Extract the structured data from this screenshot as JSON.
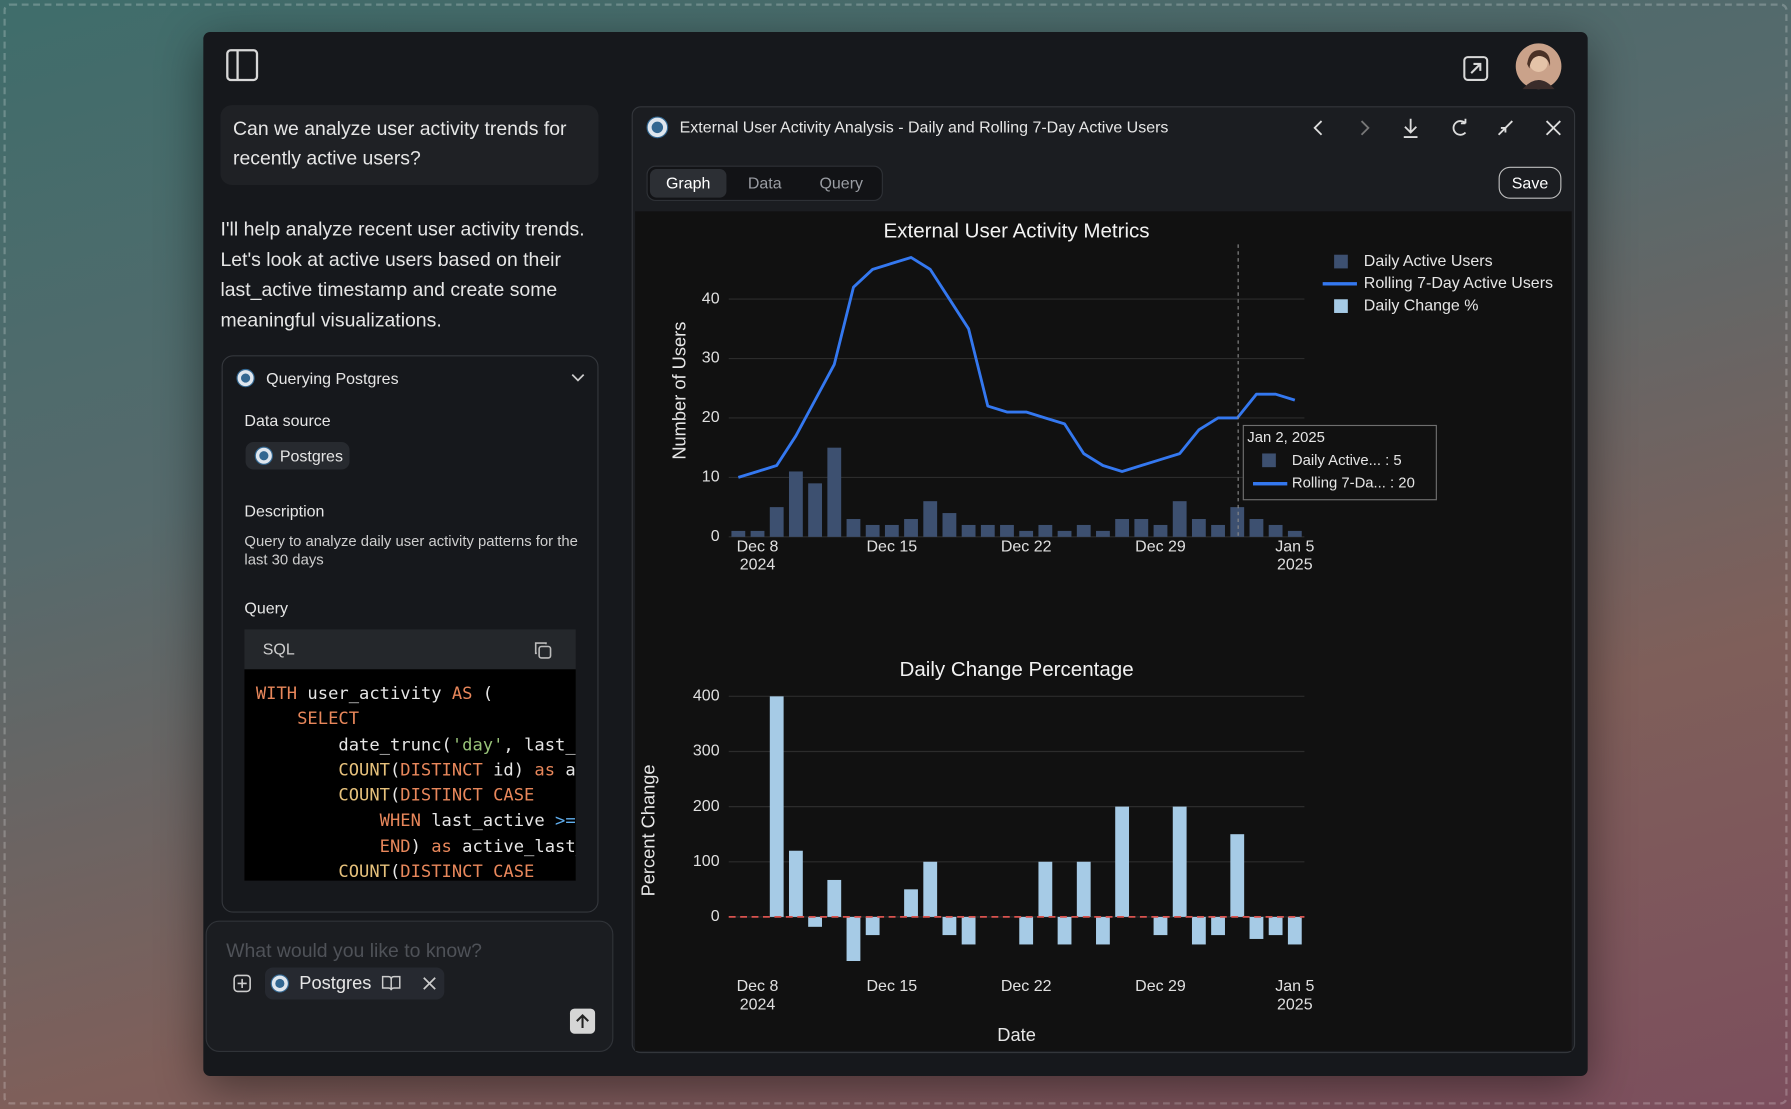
{
  "chat": {
    "user_message": "Can we analyze user activity trends for recently active users?",
    "assistant_message": "I'll help analyze recent user activity trends. Let's look at active users based on their last_active timestamp and create some meaningful visualizations."
  },
  "tool_card": {
    "title": "Querying Postgres",
    "data_source_label": "Data source",
    "data_source": "Postgres",
    "description_label": "Description",
    "description": "Query to analyze daily user activity patterns for the last 30 days",
    "query_label": "Query",
    "code": {
      "language": "SQL",
      "token_colors": {
        "kw": "#e8875b",
        "fn": "#e5c07b",
        "str": "#98c379",
        "op": "#61afef",
        "id": "#e6e6e6"
      },
      "lines": [
        [
          [
            "WITH",
            "kw"
          ],
          [
            " user_activity ",
            "id"
          ],
          [
            "AS",
            "kw"
          ],
          [
            " (",
            "id"
          ]
        ],
        [
          [
            "    ",
            "id"
          ],
          [
            "SELECT",
            "kw"
          ]
        ],
        [
          [
            "        date_trunc(",
            "id"
          ],
          [
            "'day'",
            "str"
          ],
          [
            ", last_a",
            "id"
          ]
        ],
        [
          [
            "        ",
            "id"
          ],
          [
            "COUNT",
            "fn"
          ],
          [
            "(",
            "id"
          ],
          [
            "DISTINCT",
            "kw"
          ],
          [
            " id) ",
            "id"
          ],
          [
            "as",
            "kw"
          ],
          [
            " a",
            "id"
          ]
        ],
        [
          [
            "        ",
            "id"
          ],
          [
            "COUNT",
            "fn"
          ],
          [
            "(",
            "id"
          ],
          [
            "DISTINCT CASE",
            "kw"
          ]
        ],
        [
          [
            "            ",
            "id"
          ],
          [
            "WHEN",
            "kw"
          ],
          [
            " last_active ",
            "id"
          ],
          [
            ">=",
            "op"
          ]
        ],
        [
          [
            "            ",
            "id"
          ],
          [
            "END",
            "kw"
          ],
          [
            ") ",
            "id"
          ],
          [
            "as",
            "kw"
          ],
          [
            " active_last_",
            "id"
          ]
        ],
        [
          [
            "        ",
            "id"
          ],
          [
            "COUNT",
            "fn"
          ],
          [
            "(",
            "id"
          ],
          [
            "DISTINCT CASE",
            "kw"
          ]
        ]
      ]
    }
  },
  "input": {
    "placeholder": "What would you like to know?",
    "source_chip": "Postgres"
  },
  "panel": {
    "title": "External User Activity Analysis - Daily and Rolling 7-Day Active Users",
    "tabs": [
      "Graph",
      "Data",
      "Query"
    ],
    "save": "Save"
  },
  "tooltip": {
    "title": "Jan 2, 2025",
    "items": [
      "Daily Active... : 5",
      "Rolling 7-Da... : 20"
    ]
  },
  "chart_data": [
    {
      "type": "combo",
      "title": "External User Activity Metrics",
      "ylabel": "Number of Users",
      "x": [
        "2024-12-07",
        "2024-12-08",
        "2024-12-09",
        "2024-12-10",
        "2024-12-11",
        "2024-12-12",
        "2024-12-13",
        "2024-12-14",
        "2024-12-15",
        "2024-12-16",
        "2024-12-17",
        "2024-12-18",
        "2024-12-19",
        "2024-12-20",
        "2024-12-21",
        "2024-12-22",
        "2024-12-23",
        "2024-12-24",
        "2024-12-25",
        "2024-12-26",
        "2024-12-27",
        "2024-12-28",
        "2024-12-29",
        "2024-12-30",
        "2024-12-31",
        "2025-01-01",
        "2025-01-02",
        "2025-01-03",
        "2025-01-04",
        "2025-01-05"
      ],
      "series": [
        {
          "name": "Daily Active Users",
          "type": "bar",
          "color": "#3d5070",
          "values": [
            1,
            1,
            5,
            11,
            9,
            15,
            3,
            2,
            2,
            3,
            6,
            4,
            2,
            2,
            2,
            1,
            2,
            1,
            2,
            1,
            3,
            3,
            2,
            6,
            3,
            2,
            5,
            3,
            2,
            1
          ]
        },
        {
          "name": "Rolling 7-Day Active Users",
          "type": "line",
          "color": "#3478f0",
          "values": [
            10,
            11,
            12,
            17,
            23,
            29,
            42,
            45,
            46,
            47,
            45,
            40,
            35,
            22,
            21,
            21,
            20,
            19,
            14,
            12,
            11,
            12,
            13,
            14,
            18,
            20,
            20,
            24,
            24,
            23
          ]
        }
      ],
      "xlim": [
        "2024-12-06T12:00Z",
        "2025-01-05T12:00Z"
      ],
      "xticks": [
        {
          "value": "2024-12-08",
          "label": [
            "Dec 8",
            "2024"
          ]
        },
        {
          "value": "2024-12-15",
          "label": [
            "Dec 15"
          ]
        },
        {
          "value": "2024-12-22",
          "label": [
            "Dec 22"
          ]
        },
        {
          "value": "2024-12-29",
          "label": [
            "Dec 29"
          ]
        },
        {
          "value": "2025-01-05",
          "label": [
            "Jan 5",
            "2025"
          ]
        }
      ],
      "ylim": [
        0,
        49
      ],
      "yticks": [
        0,
        10,
        20,
        30,
        40
      ],
      "grid": true,
      "legend": "top-right"
    },
    {
      "type": "bar",
      "title": "Daily Change Percentage",
      "ylabel": "Percent Change",
      "xlabel": "Date",
      "x": [
        "2024-12-07",
        "2024-12-08",
        "2024-12-09",
        "2024-12-10",
        "2024-12-11",
        "2024-12-12",
        "2024-12-13",
        "2024-12-14",
        "2024-12-15",
        "2024-12-16",
        "2024-12-17",
        "2024-12-18",
        "2024-12-19",
        "2024-12-20",
        "2024-12-21",
        "2024-12-22",
        "2024-12-23",
        "2024-12-24",
        "2024-12-25",
        "2024-12-26",
        "2024-12-27",
        "2024-12-28",
        "2024-12-29",
        "2024-12-30",
        "2024-12-31",
        "2025-01-01",
        "2025-01-02",
        "2025-01-03",
        "2025-01-04",
        "2025-01-05"
      ],
      "series": [
        {
          "name": "Daily Change %",
          "type": "bar",
          "color": "#a6cbe6",
          "values": [
            null,
            0,
            400,
            120,
            -18,
            67,
            -80,
            -33,
            0,
            50,
            100,
            -33,
            -50,
            0,
            0,
            -50,
            100,
            -50,
            100,
            -50,
            200,
            0,
            -33,
            200,
            -50,
            -33,
            150,
            -40,
            -33,
            -50
          ]
        }
      ],
      "xlim": [
        "2024-12-06T12:00Z",
        "2025-01-05T12:00Z"
      ],
      "xticks": [
        {
          "value": "2024-12-08",
          "label": [
            "Dec 8",
            "2024"
          ]
        },
        {
          "value": "2024-12-15",
          "label": [
            "Dec 15"
          ]
        },
        {
          "value": "2024-12-22",
          "label": [
            "Dec 22"
          ]
        },
        {
          "value": "2024-12-29",
          "label": [
            "Dec 29"
          ]
        },
        {
          "value": "2025-01-05",
          "label": [
            "Jan 5",
            "2025"
          ]
        }
      ],
      "ylim": [
        -100,
        420
      ],
      "yticks": [
        0,
        100,
        200,
        300,
        400
      ],
      "grid": true,
      "zero_line": {
        "value": 0,
        "color": "#d9534f"
      }
    }
  ]
}
